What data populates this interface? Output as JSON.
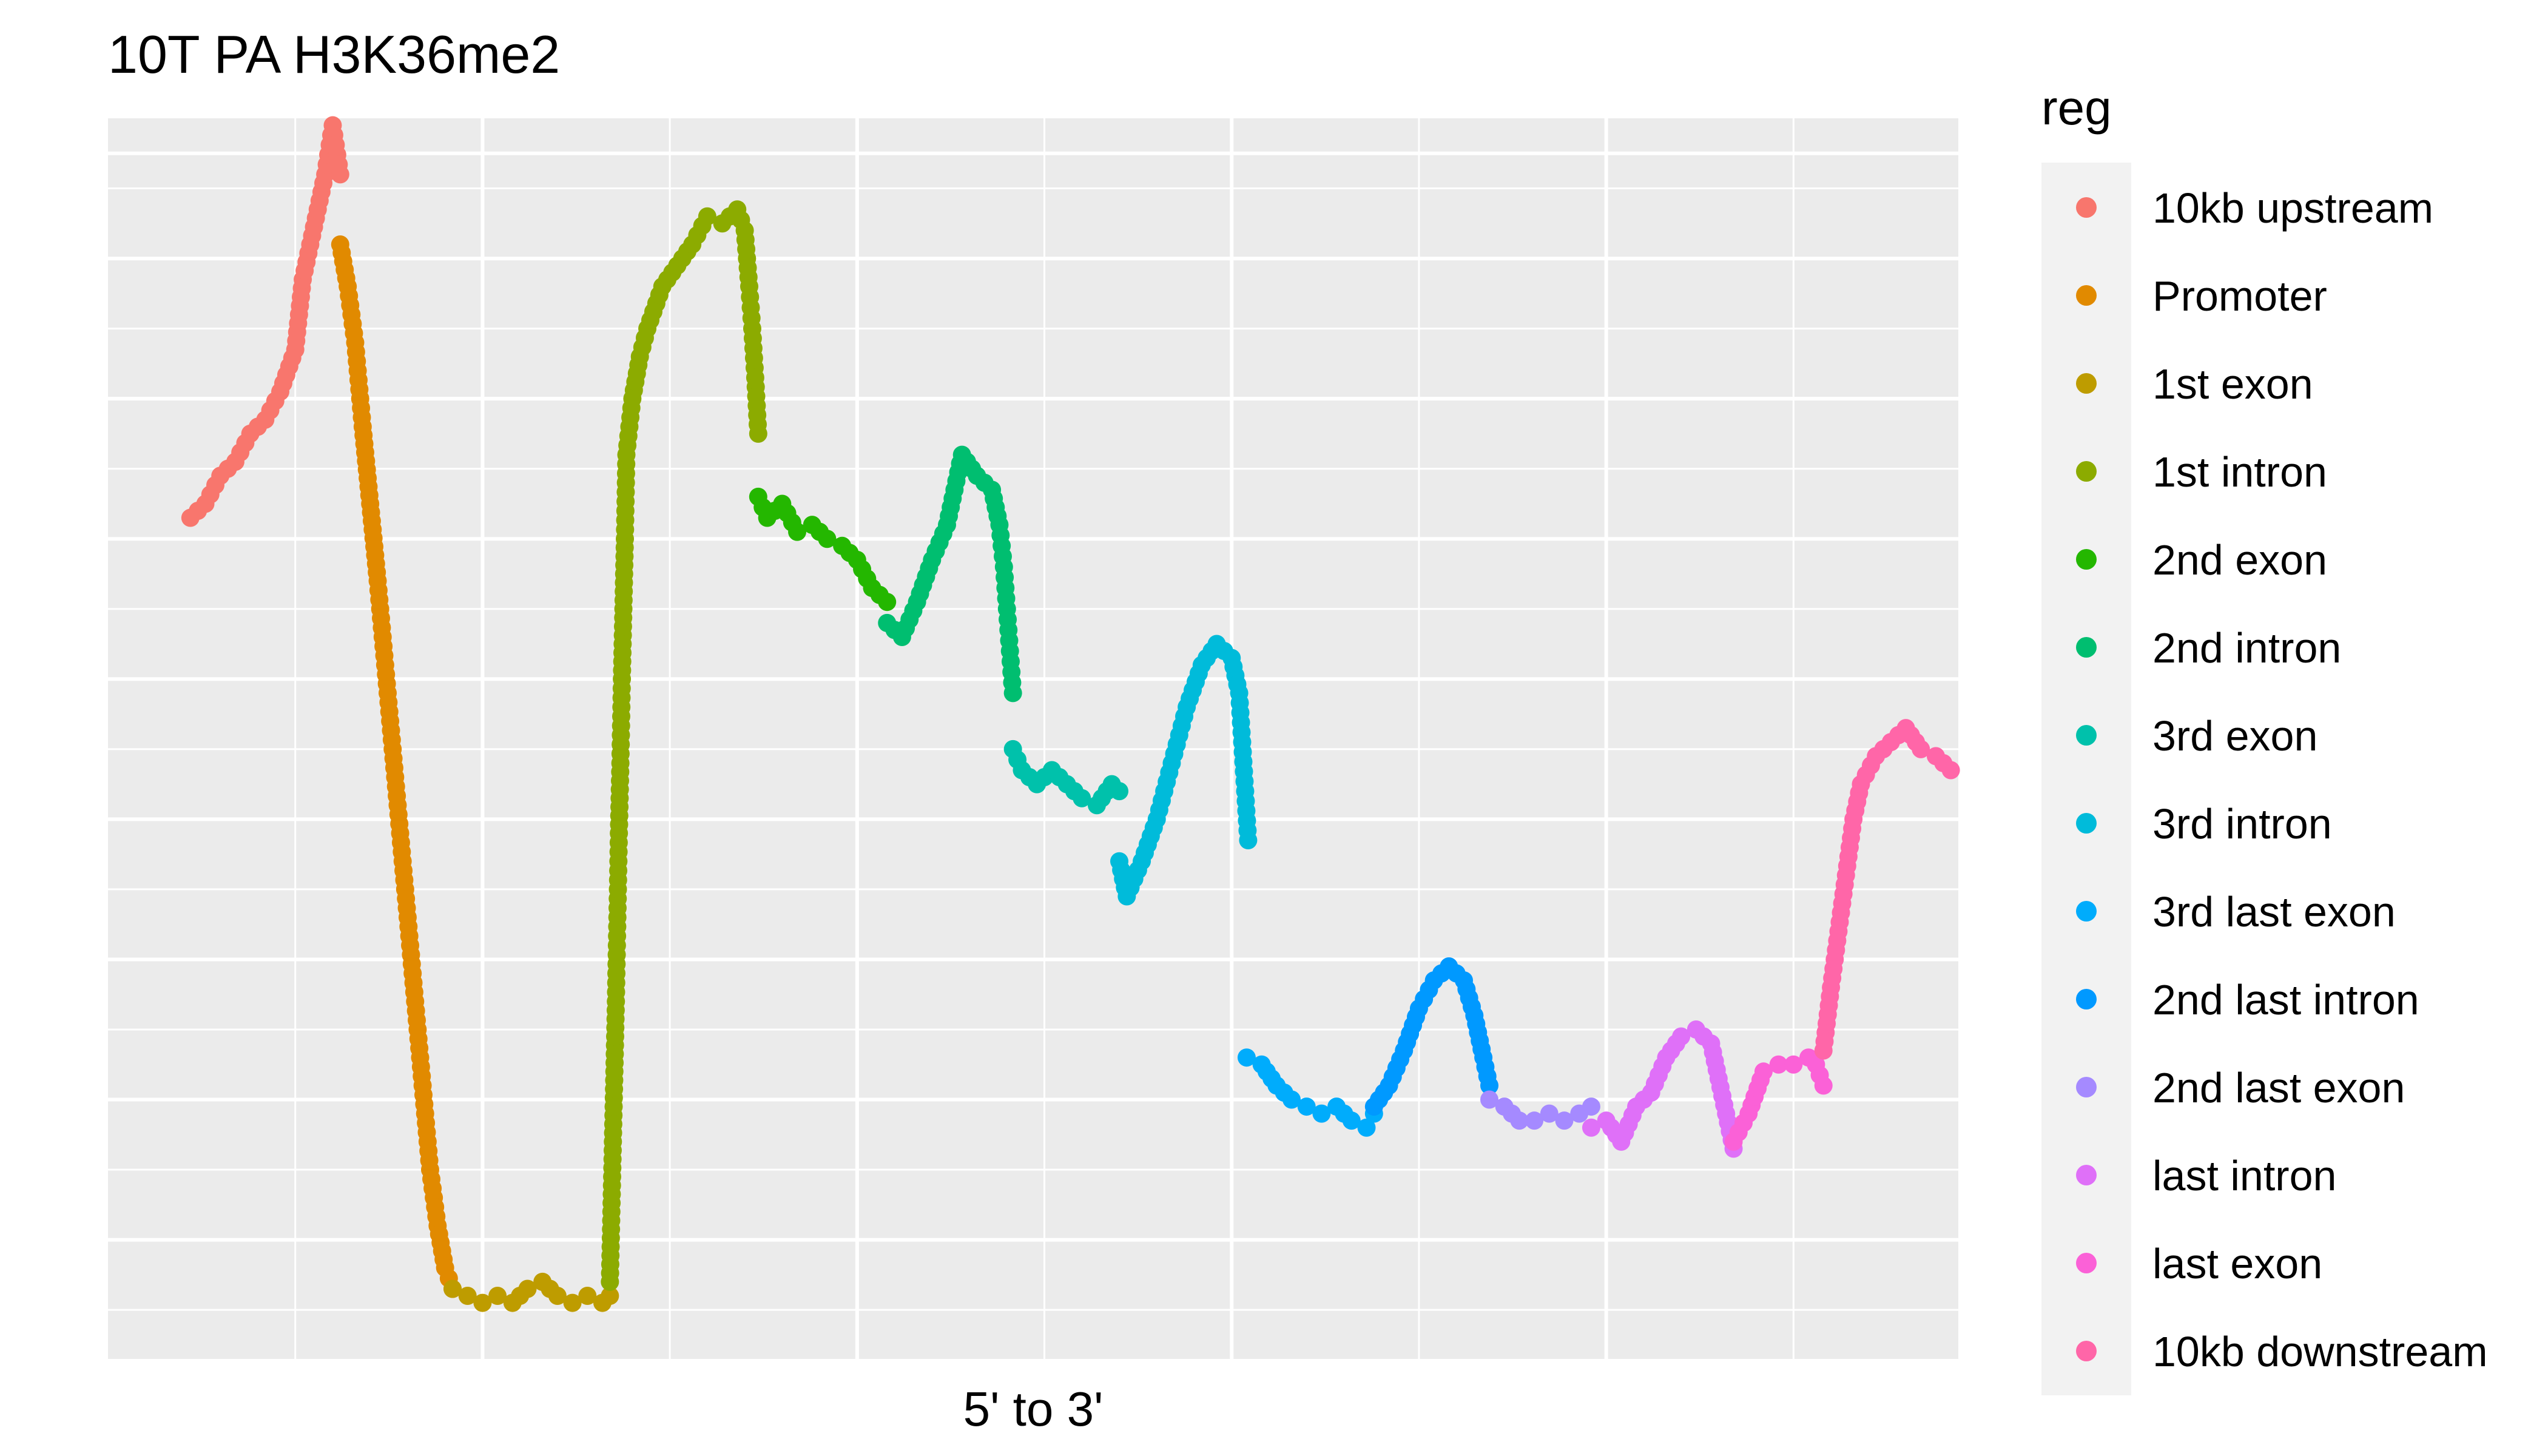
{
  "chart_data": {
    "type": "scatter",
    "title": "10T PA H3K36me2",
    "xlabel": "5' to 3'",
    "ylabel": "",
    "xlim": [
      0,
      1.235
    ],
    "ylim": [
      -0.35,
      8.5
    ],
    "grid": true,
    "legend": {
      "title": "reg",
      "position": "right",
      "entries": [
        {
          "label": "10kb upstream",
          "color": "#F8766D"
        },
        {
          "label": "Promoter",
          "color": "#E18A00"
        },
        {
          "label": "1st exon",
          "color": "#BE9C00"
        },
        {
          "label": "1st intron",
          "color": "#8CAB00"
        },
        {
          "label": "2nd exon",
          "color": "#24B700"
        },
        {
          "label": "2nd intron",
          "color": "#00BE70"
        },
        {
          "label": "3rd exon",
          "color": "#00C1AB"
        },
        {
          "label": "3rd intron",
          "color": "#00BBDA"
        },
        {
          "label": "3rd last exon",
          "color": "#00ACFC"
        },
        {
          "label": "2nd last intron",
          "color": "#0099FF"
        },
        {
          "label": "2nd last exon",
          "color": "#A58AFF"
        },
        {
          "label": "last intron",
          "color": "#DF70F8"
        },
        {
          "label": "last exon",
          "color": "#FB61D7"
        },
        {
          "label": "10kb downstream",
          "color": "#FF66A8"
        }
      ]
    },
    "series": [
      {
        "name": "10kb upstream",
        "color": "#F8766D",
        "points": [
          [
            0.055,
            5.65
          ],
          [
            0.065,
            5.75
          ],
          [
            0.075,
            5.95
          ],
          [
            0.085,
            6.05
          ],
          [
            0.095,
            6.25
          ],
          [
            0.105,
            6.35
          ],
          [
            0.115,
            6.55
          ],
          [
            0.125,
            6.85
          ],
          [
            0.13,
            7.35
          ],
          [
            0.14,
            7.85
          ],
          [
            0.145,
            8.1
          ],
          [
            0.15,
            8.45
          ],
          [
            0.155,
            8.1
          ]
        ]
      },
      {
        "name": "Promoter",
        "color": "#E18A00",
        "points": [
          [
            0.155,
            7.6
          ],
          [
            0.16,
            7.3
          ],
          [
            0.165,
            6.9
          ],
          [
            0.17,
            6.3
          ],
          [
            0.175,
            5.75
          ],
          [
            0.18,
            5.2
          ],
          [
            0.185,
            4.6
          ],
          [
            0.19,
            4.0
          ],
          [
            0.195,
            3.4
          ],
          [
            0.2,
            2.8
          ],
          [
            0.205,
            2.2
          ],
          [
            0.21,
            1.6
          ],
          [
            0.215,
            1.0
          ],
          [
            0.22,
            0.6
          ],
          [
            0.225,
            0.3
          ],
          [
            0.23,
            0.15
          ]
        ]
      },
      {
        "name": "1st exon",
        "color": "#BE9C00",
        "points": [
          [
            0.23,
            0.15
          ],
          [
            0.24,
            0.1
          ],
          [
            0.25,
            0.05
          ],
          [
            0.26,
            0.1
          ],
          [
            0.27,
            0.05
          ],
          [
            0.28,
            0.15
          ],
          [
            0.29,
            0.2
          ],
          [
            0.3,
            0.1
          ],
          [
            0.31,
            0.05
          ],
          [
            0.32,
            0.1
          ],
          [
            0.33,
            0.05
          ],
          [
            0.335,
            0.1
          ]
        ]
      },
      {
        "name": "1st intron",
        "color": "#8CAB00",
        "points": [
          [
            0.335,
            0.2
          ],
          [
            0.336,
            0.7
          ],
          [
            0.337,
            1.2
          ],
          [
            0.338,
            1.7
          ],
          [
            0.339,
            2.2
          ],
          [
            0.34,
            2.8
          ],
          [
            0.341,
            3.4
          ],
          [
            0.342,
            3.9
          ],
          [
            0.343,
            4.5
          ],
          [
            0.344,
            5.0
          ],
          [
            0.345,
            5.5
          ],
          [
            0.346,
            6.1
          ],
          [
            0.35,
            6.5
          ],
          [
            0.355,
            6.8
          ],
          [
            0.36,
            7.0
          ],
          [
            0.37,
            7.3
          ],
          [
            0.38,
            7.45
          ],
          [
            0.39,
            7.6
          ],
          [
            0.4,
            7.8
          ],
          [
            0.41,
            7.75
          ],
          [
            0.42,
            7.85
          ],
          [
            0.425,
            7.7
          ],
          [
            0.428,
            7.3
          ],
          [
            0.43,
            7.0
          ],
          [
            0.432,
            6.65
          ],
          [
            0.434,
            6.25
          ]
        ]
      },
      {
        "name": "2nd exon",
        "color": "#24B700",
        "points": [
          [
            0.434,
            5.8
          ],
          [
            0.44,
            5.65
          ],
          [
            0.45,
            5.75
          ],
          [
            0.46,
            5.55
          ],
          [
            0.47,
            5.6
          ],
          [
            0.48,
            5.5
          ],
          [
            0.49,
            5.45
          ],
          [
            0.5,
            5.35
          ],
          [
            0.51,
            5.15
          ],
          [
            0.52,
            5.05
          ]
        ]
      },
      {
        "name": "2nd intron",
        "color": "#00BE70",
        "points": [
          [
            0.52,
            4.9
          ],
          [
            0.53,
            4.8
          ],
          [
            0.54,
            5.05
          ],
          [
            0.55,
            5.35
          ],
          [
            0.56,
            5.6
          ],
          [
            0.565,
            5.85
          ],
          [
            0.57,
            6.1
          ],
          [
            0.58,
            5.95
          ],
          [
            0.59,
            5.85
          ],
          [
            0.595,
            5.6
          ],
          [
            0.598,
            5.3
          ],
          [
            0.6,
            5.0
          ],
          [
            0.602,
            4.7
          ],
          [
            0.604,
            4.4
          ]
        ]
      },
      {
        "name": "3rd exon",
        "color": "#00C1AB",
        "points": [
          [
            0.604,
            4.0
          ],
          [
            0.61,
            3.85
          ],
          [
            0.62,
            3.75
          ],
          [
            0.63,
            3.85
          ],
          [
            0.64,
            3.75
          ],
          [
            0.65,
            3.65
          ],
          [
            0.66,
            3.6
          ],
          [
            0.67,
            3.75
          ],
          [
            0.675,
            3.7
          ]
        ]
      },
      {
        "name": "3rd intron",
        "color": "#00BBDA",
        "points": [
          [
            0.675,
            3.2
          ],
          [
            0.68,
            2.95
          ],
          [
            0.69,
            3.2
          ],
          [
            0.7,
            3.5
          ],
          [
            0.71,
            3.9
          ],
          [
            0.72,
            4.3
          ],
          [
            0.73,
            4.6
          ],
          [
            0.74,
            4.75
          ],
          [
            0.75,
            4.65
          ],
          [
            0.755,
            4.4
          ],
          [
            0.757,
            4.05
          ],
          [
            0.759,
            3.7
          ],
          [
            0.761,
            3.35
          ]
        ]
      },
      {
        "name": "3rd last exon",
        "color": "#00ACFC",
        "points": [
          [
            0.76,
            1.8
          ],
          [
            0.77,
            1.75
          ],
          [
            0.78,
            1.6
          ],
          [
            0.79,
            1.5
          ],
          [
            0.8,
            1.45
          ],
          [
            0.81,
            1.4
          ],
          [
            0.82,
            1.45
          ],
          [
            0.83,
            1.35
          ],
          [
            0.84,
            1.3
          ],
          [
            0.845,
            1.4
          ]
        ]
      },
      {
        "name": "2nd last intron",
        "color": "#0099FF",
        "points": [
          [
            0.845,
            1.45
          ],
          [
            0.855,
            1.6
          ],
          [
            0.865,
            1.85
          ],
          [
            0.875,
            2.15
          ],
          [
            0.885,
            2.35
          ],
          [
            0.895,
            2.45
          ],
          [
            0.905,
            2.35
          ],
          [
            0.912,
            2.1
          ],
          [
            0.918,
            1.8
          ],
          [
            0.922,
            1.6
          ]
        ]
      },
      {
        "name": "2nd last exon",
        "color": "#A58AFF",
        "points": [
          [
            0.922,
            1.5
          ],
          [
            0.932,
            1.45
          ],
          [
            0.942,
            1.35
          ],
          [
            0.952,
            1.35
          ],
          [
            0.962,
            1.4
          ],
          [
            0.972,
            1.35
          ],
          [
            0.982,
            1.4
          ],
          [
            0.99,
            1.45
          ]
        ]
      },
      {
        "name": "last intron",
        "color": "#DF70F8",
        "points": [
          [
            0.99,
            1.3
          ],
          [
            1.0,
            1.35
          ],
          [
            1.01,
            1.2
          ],
          [
            1.02,
            1.45
          ],
          [
            1.03,
            1.55
          ],
          [
            1.04,
            1.8
          ],
          [
            1.05,
            1.95
          ],
          [
            1.06,
            2.0
          ],
          [
            1.07,
            1.9
          ],
          [
            1.075,
            1.65
          ],
          [
            1.08,
            1.4
          ],
          [
            1.085,
            1.15
          ]
        ]
      },
      {
        "name": "last exon",
        "color": "#FB61D7",
        "points": [
          [
            1.085,
            1.2
          ],
          [
            1.095,
            1.4
          ],
          [
            1.105,
            1.7
          ],
          [
            1.115,
            1.75
          ],
          [
            1.125,
            1.75
          ],
          [
            1.135,
            1.8
          ],
          [
            1.14,
            1.75
          ],
          [
            1.145,
            1.6
          ]
        ]
      },
      {
        "name": "10kb downstream",
        "color": "#FF66A8",
        "points": [
          [
            1.145,
            1.85
          ],
          [
            1.15,
            2.3
          ],
          [
            1.155,
            2.7
          ],
          [
            1.16,
            3.1
          ],
          [
            1.165,
            3.5
          ],
          [
            1.17,
            3.75
          ],
          [
            1.18,
            3.95
          ],
          [
            1.19,
            4.05
          ],
          [
            1.2,
            4.15
          ],
          [
            1.21,
            4.0
          ],
          [
            1.22,
            3.95
          ],
          [
            1.23,
            3.85
          ]
        ]
      }
    ]
  }
}
